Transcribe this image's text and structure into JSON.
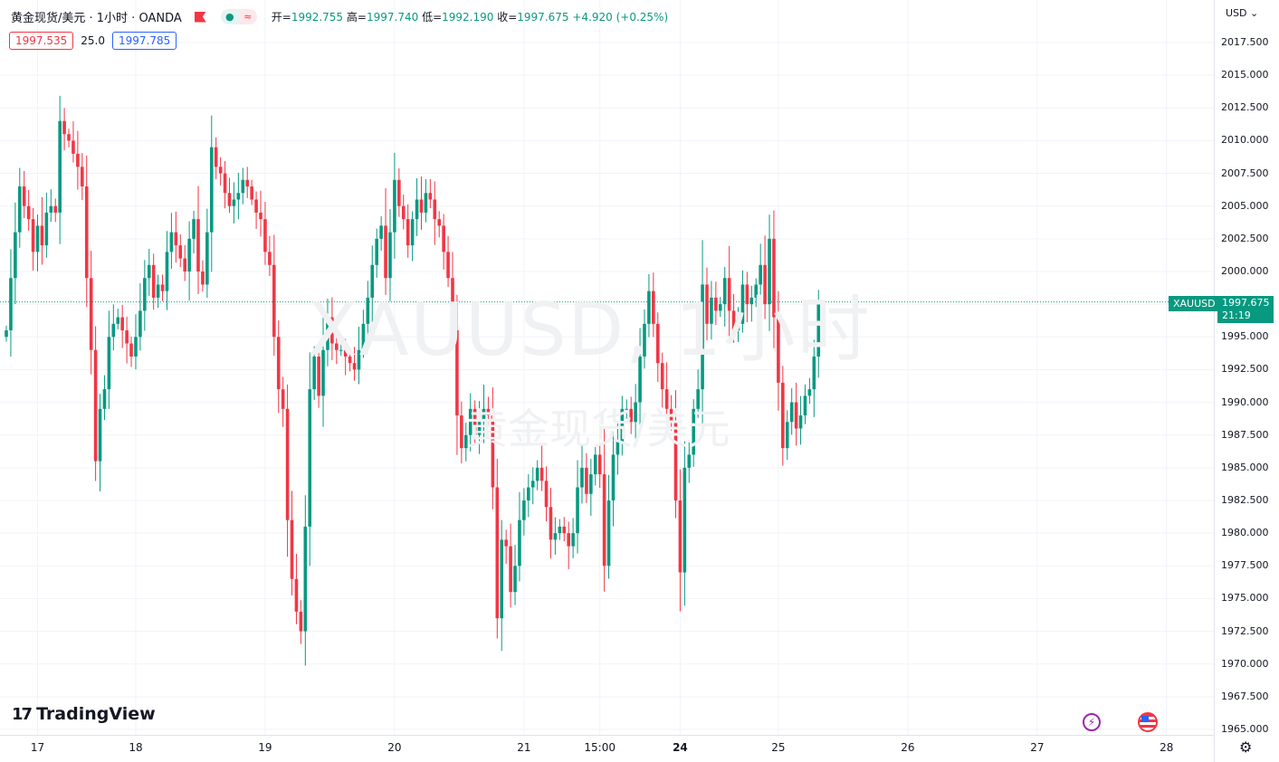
{
  "header": {
    "symbol_title": "黄金现货/美元 · 1小时 · OANDA",
    "ohlc": {
      "open_label": "开=",
      "open": "1992.755",
      "high_label": "高=",
      "high": "1997.740",
      "low_label": "低=",
      "low": "1992.190",
      "close_label": "收=",
      "close": "1997.675",
      "change": "+4.920 (+0.25%)"
    },
    "pill_dot": "●",
    "pill_wave": "≈"
  },
  "quote": {
    "sell": "1997.535",
    "spread": "25.0",
    "buy": "1997.785"
  },
  "watermark": {
    "line1": "XAUUSD, 1小时",
    "line2": "黄金现货/美元"
  },
  "currency": "USD",
  "currency_chevron": "⌄",
  "current": {
    "symbol": "XAUUSD",
    "price": "1997.675",
    "countdown": "21:19"
  },
  "brand": {
    "name": "TradingView",
    "mark": "17"
  },
  "icons": {
    "bolt": "⚡",
    "settings": "⚙"
  },
  "colors": {
    "up": "#089981",
    "down": "#f23645",
    "grid": "#f0f3fa",
    "price_line": "#089981"
  },
  "chart_data": {
    "type": "candlestick",
    "symbol": "XAUUSD",
    "interval": "1小时",
    "ylim": [
      1965.0,
      2018.5
    ],
    "yticks": [
      2017.5,
      2015.0,
      2012.5,
      2010.0,
      2007.5,
      2005.0,
      2002.5,
      2000.0,
      1997.5,
      1995.0,
      1992.5,
      1990.0,
      1987.5,
      1985.0,
      1982.5,
      1980.0,
      1977.5,
      1975.0,
      1972.5,
      1970.0,
      1967.5,
      1965.0
    ],
    "ytick_labels": [
      "2017.500",
      "2015.000",
      "2012.500",
      "2010.000",
      "2007.500",
      "2005.000",
      "2002.500",
      "2000.000",
      "1997.500",
      "1995.000",
      "1992.500",
      "1990.000",
      "1987.500",
      "1985.000",
      "1982.500",
      "1980.000",
      "1977.500",
      "1975.000",
      "1972.500",
      "1970.000",
      "1967.500",
      "1965.000"
    ],
    "xticks": [
      {
        "label": "17",
        "bold": false,
        "bar": 7
      },
      {
        "label": "18",
        "bold": false,
        "bar": 29
      },
      {
        "label": "19",
        "bold": false,
        "bar": 58
      },
      {
        "label": "20",
        "bold": false,
        "bar": 87
      },
      {
        "label": "21",
        "bold": false,
        "bar": 116
      },
      {
        "label": "15:00",
        "bold": false,
        "bar": 133
      },
      {
        "label": "24",
        "bold": true,
        "bar": 151
      },
      {
        "label": "25",
        "bold": false,
        "bar": 173
      },
      {
        "label": "26",
        "bold": false,
        "bar": 202
      },
      {
        "label": "27",
        "bold": false,
        "bar": 231
      },
      {
        "label": "28",
        "bold": false,
        "bar": 260
      }
    ],
    "last_price": 1997.675,
    "closes": [
      1995.5,
      1999.5,
      2003.0,
      2006.5,
      2005.0,
      2004.0,
      2001.5,
      2003.5,
      2002.0,
      2004.5,
      2005.0,
      2004.5,
      2011.5,
      2010.5,
      2010.0,
      2009.0,
      2008.0,
      2006.5,
      1999.5,
      1994.0,
      1985.5,
      1989.5,
      1991.0,
      1995.0,
      1996.0,
      1996.5,
      1995.5,
      1994.5,
      1993.5,
      1995.0,
      1997.0,
      1999.5,
      2000.5,
      1998.0,
      1999.0,
      1998.5,
      2001.5,
      2003.0,
      2002.0,
      2001.0,
      2000.0,
      2002.5,
      2004.0,
      2000.0,
      1999.0,
      2003.0,
      2009.5,
      2008.0,
      2007.5,
      2006.0,
      2005.0,
      2005.5,
      2006.0,
      2007.0,
      2006.5,
      2005.5,
      2004.5,
      2004.0,
      2001.5,
      2000.5,
      1995.0,
      1991.0,
      1989.5,
      1981.0,
      1976.5,
      1974.0,
      1972.5,
      1980.5,
      1991.0,
      1993.5,
      1990.5,
      1994.0,
      1996.5,
      1994.5,
      1994.0,
      1994.0,
      1993.5,
      1993.0,
      1992.5,
      1994.0,
      1996.0,
      1998.0,
      2000.5,
      2002.5,
      2003.5,
      1999.5,
      2003.0,
      2007.0,
      2005.0,
      2004.0,
      2002.0,
      2004.0,
      2005.5,
      2004.5,
      2006.0,
      2005.5,
      2004.0,
      2003.5,
      2001.5,
      1999.5,
      1995.5,
      1989.0,
      1986.5,
      1987.5,
      1989.5,
      1987.5,
      1988.5,
      1989.5,
      1989.0,
      1983.5,
      1973.5,
      1979.5,
      1979.0,
      1975.5,
      1977.5,
      1981.0,
      1982.5,
      1983.5,
      1984.0,
      1985.0,
      1984.0,
      1982.0,
      1979.5,
      1980.0,
      1980.5,
      1980.0,
      1979.0,
      1980.0,
      1983.5,
      1985.0,
      1983.0,
      1984.5,
      1986.0,
      1984.5,
      1977.5,
      1982.5,
      1986.0,
      1987.0,
      1989.5,
      1989.5,
      1988.5,
      1990.0,
      1993.5,
      1996.0,
      1998.5,
      1996.0,
      1993.0,
      1991.0,
      1989.5,
      1988.5,
      1982.5,
      1977.0,
      1985.0,
      1986.0,
      1989.5,
      1991.0,
      1999.0,
      1996.0,
      1998.0,
      1997.0,
      1997.5,
      1999.5,
      1997.0,
      1995.5,
      1996.0,
      1999.0,
      1997.5,
      1998.0,
      1999.0,
      2000.5,
      1997.5,
      2002.5,
      1996.5,
      1991.5,
      1986.5,
      1988.5,
      1990.0,
      1988.0,
      1989.0,
      1990.5,
      1991.0,
      1993.5,
      1997.675
    ]
  }
}
